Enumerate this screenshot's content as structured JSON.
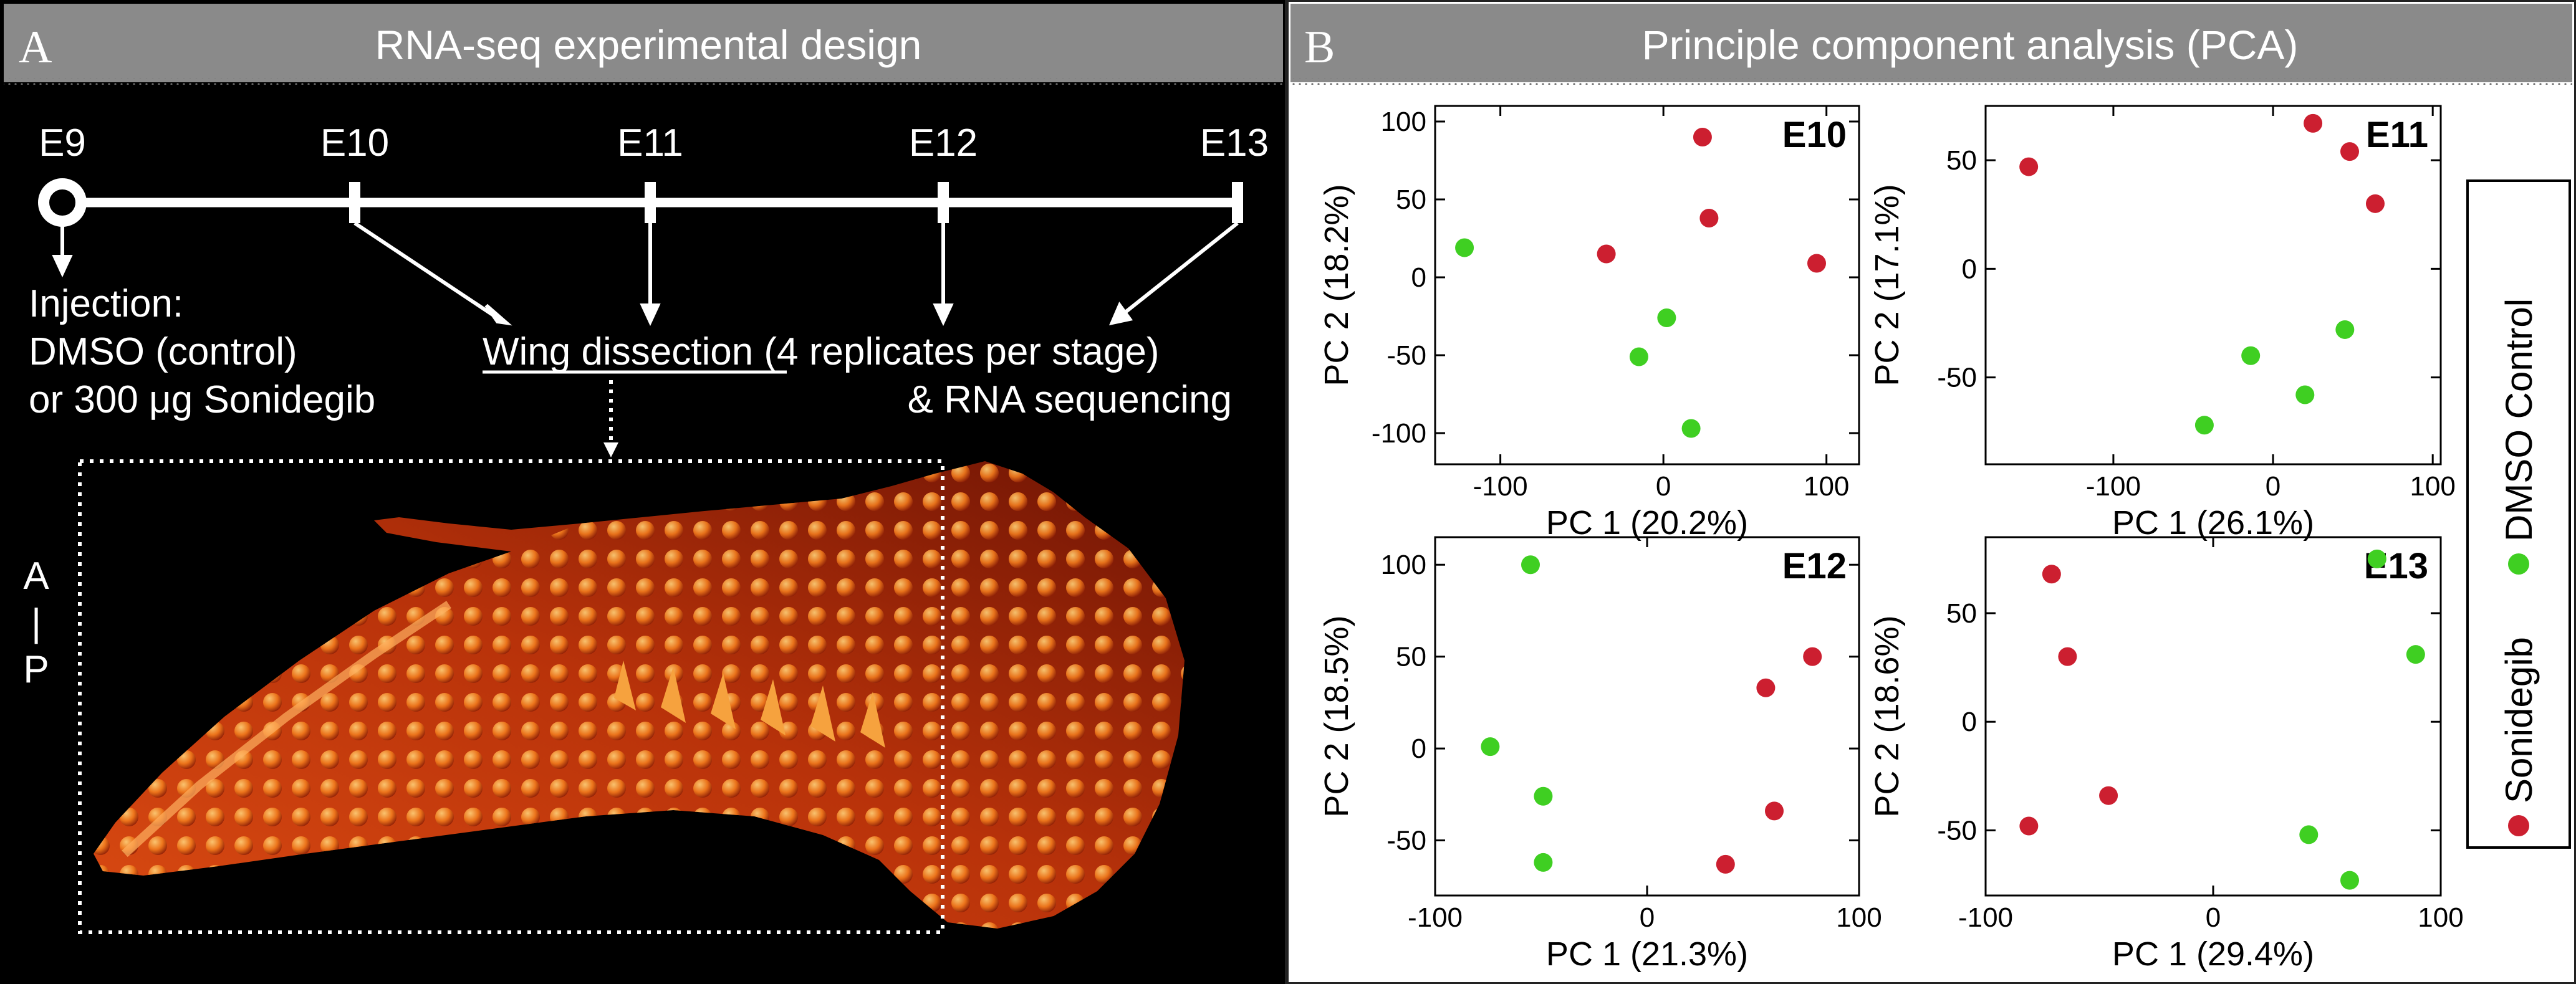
{
  "panel_a": {
    "letter": "A",
    "title": "RNA-seq experimental design",
    "timeline_labels": [
      "E9",
      "E10",
      "E11",
      "E12",
      "E13"
    ],
    "injection": [
      "Injection:",
      "DMSO (control)",
      "or 300 μg Sonidegib"
    ],
    "dissection_underlined": "Wing dissection",
    "dissection_rest": " (4 replicates per stage)",
    "sequencing": "& RNA sequencing",
    "axis_top": "A",
    "axis_mid": "|",
    "axis_bottom": "P"
  },
  "panel_b": {
    "letter": "B",
    "title": "Principle component analysis (PCA)"
  },
  "legend": {
    "items": [
      {
        "label": "Sonidegib",
        "color": "#cc1f30"
      },
      {
        "label": "DMSO Control",
        "color": "#3fcf22"
      }
    ]
  },
  "chart_data": [
    {
      "type": "scatter",
      "title": "E10",
      "xlabel": "PC 1 (20.2%)",
      "ylabel": "PC 2 (18.2%)",
      "xlim": [
        -140,
        120
      ],
      "ylim": [
        -120,
        110
      ],
      "xticks": [
        -100,
        0,
        100
      ],
      "yticks": [
        -100,
        -50,
        0,
        50,
        100
      ],
      "series": [
        {
          "name": "Sonidegib",
          "color": "#cc1f30",
          "points": [
            [
              24,
              90
            ],
            [
              28,
              38
            ],
            [
              -35,
              15
            ],
            [
              94,
              9
            ]
          ]
        },
        {
          "name": "DMSO Control",
          "color": "#3fcf22",
          "points": [
            [
              -122,
              19
            ],
            [
              2,
              -26
            ],
            [
              -15,
              -51
            ],
            [
              17,
              -97
            ]
          ]
        }
      ]
    },
    {
      "type": "scatter",
      "title": "E11",
      "xlabel": "PC 1 (26.1%)",
      "ylabel": "PC 2 (17.1%)",
      "xlim": [
        -180,
        105
      ],
      "ylim": [
        -90,
        75
      ],
      "xticks": [
        -100,
        0,
        100
      ],
      "yticks": [
        -50,
        0,
        50
      ],
      "series": [
        {
          "name": "Sonidegib",
          "color": "#cc1f30",
          "points": [
            [
              -153,
              47
            ],
            [
              25,
              67
            ],
            [
              48,
              54
            ],
            [
              64,
              30
            ]
          ]
        },
        {
          "name": "DMSO Control",
          "color": "#3fcf22",
          "points": [
            [
              45,
              -28
            ],
            [
              -14,
              -40
            ],
            [
              20,
              -58
            ],
            [
              -43,
              -72
            ]
          ]
        }
      ]
    },
    {
      "type": "scatter",
      "title": "E12",
      "xlabel": "PC 1 (21.3%)",
      "ylabel": "PC 2 (18.5%)",
      "xlim": [
        -100,
        100
      ],
      "ylim": [
        -80,
        115
      ],
      "xticks": [
        -100,
        0,
        100
      ],
      "yticks": [
        -50,
        0,
        50,
        100
      ],
      "series": [
        {
          "name": "Sonidegib",
          "color": "#cc1f30",
          "points": [
            [
              78,
              50
            ],
            [
              56,
              33
            ],
            [
              60,
              -34
            ],
            [
              37,
              -63
            ]
          ]
        },
        {
          "name": "DMSO Control",
          "color": "#3fcf22",
          "points": [
            [
              -55,
              100
            ],
            [
              -74,
              1
            ],
            [
              -49,
              -26
            ],
            [
              -49,
              -62
            ]
          ]
        }
      ]
    },
    {
      "type": "scatter",
      "title": "E13",
      "xlabel": "PC 1 (29.4%)",
      "ylabel": "PC 2 (18.6%)",
      "xlim": [
        -100,
        100
      ],
      "ylim": [
        -80,
        85
      ],
      "xticks": [
        -100,
        0,
        100
      ],
      "yticks": [
        -50,
        0,
        50
      ],
      "series": [
        {
          "name": "Sonidegib",
          "color": "#cc1f30",
          "points": [
            [
              -71,
              68
            ],
            [
              -64,
              30
            ],
            [
              -46,
              -34
            ],
            [
              -81,
              -48
            ]
          ]
        },
        {
          "name": "DMSO Control",
          "color": "#3fcf22",
          "points": [
            [
              72,
              75
            ],
            [
              89,
              31
            ],
            [
              42,
              -52
            ],
            [
              60,
              -73
            ]
          ]
        }
      ]
    }
  ]
}
